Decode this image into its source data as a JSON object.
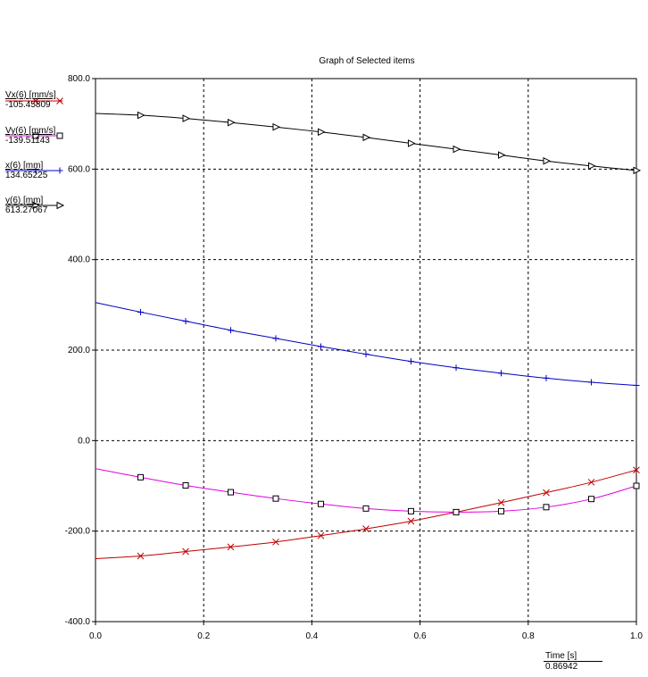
{
  "chart_data": {
    "type": "line",
    "title": "Graph of Selected items",
    "xlim": [
      0.0,
      1.0
    ],
    "ylim": [
      -400.0,
      800.0
    ],
    "xticks": [
      "0.0",
      "0.2",
      "0.4",
      "0.6",
      "0.8",
      "1.0"
    ],
    "yticks": [
      "-400.0",
      "-200.0",
      "0.0",
      "200.0",
      "400.0",
      "600.0",
      "800.0"
    ],
    "grid": true,
    "legend_position": "left",
    "x": [
      0.0,
      0.0833,
      0.1667,
      0.25,
      0.3333,
      0.4167,
      0.5,
      0.5833,
      0.6667,
      0.75,
      0.8333,
      0.9167,
      1.0
    ],
    "series": [
      {
        "name": "Vx(6) [mm/s]",
        "readout": "-105.45809",
        "color": "#c00000",
        "marker": "x",
        "values": [
          -261,
          -255,
          -245,
          -235,
          -224,
          -210,
          -195,
          -178,
          -158,
          -137,
          -115,
          -92,
          -65
        ]
      },
      {
        "name": "Vy(6) [mm/s]",
        "readout": "-139.51143",
        "color": "#e000e0",
        "marker": "square",
        "values": [
          -62,
          -81,
          -99,
          -114,
          -128,
          -140,
          -150,
          -156,
          -158,
          -156,
          -147,
          -129,
          -100
        ]
      },
      {
        "name": "x(6) [mm]",
        "readout": "134.65225",
        "color": "#0000c0",
        "marker": "plus",
        "values": [
          305,
          284,
          264,
          244,
          226,
          208,
          191,
          175,
          161,
          149,
          138,
          129,
          122
        ]
      },
      {
        "name": "y(6) [mm]",
        "readout": "613.27067",
        "color": "#000000",
        "marker": "triangle",
        "values": [
          723,
          719,
          712,
          703,
          693,
          682,
          670,
          657,
          644,
          631,
          618,
          607,
          597
        ]
      }
    ],
    "xlabel": "Time [s]",
    "xreadout": "0.86942"
  }
}
